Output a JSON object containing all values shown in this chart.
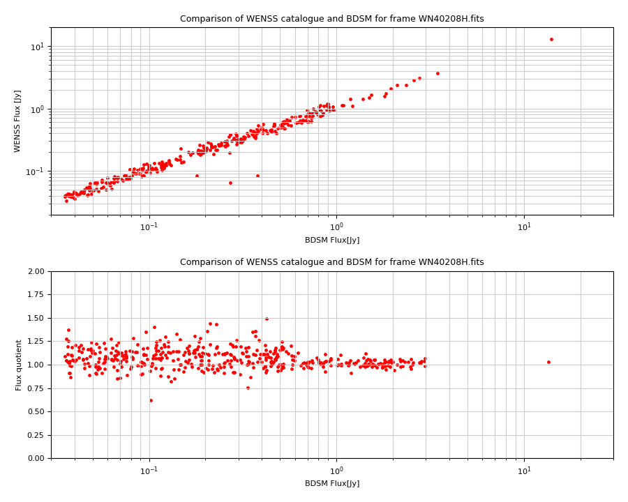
{
  "title": "Comparison of WENSS catalogue and BDSM for frame WN40208H.fits",
  "xlabel": "BDSM Flux[Jy]",
  "ylabel1": "WENSS Flux [Jy]",
  "ylabel2": "Flux quotient",
  "point_color": "#ff0000",
  "marker_size": 4,
  "xlim1": [
    0.03,
    30.0
  ],
  "ylim1": [
    0.02,
    20.0
  ],
  "xlim2": [
    0.03,
    30.0
  ],
  "ylim2": [
    0.0,
    2.0
  ],
  "yticks2": [
    0.0,
    0.25,
    0.5,
    0.75,
    1.0,
    1.25,
    1.5,
    1.75,
    2.0
  ],
  "grid_color": "#cccccc",
  "bg_color": "#ffffff"
}
